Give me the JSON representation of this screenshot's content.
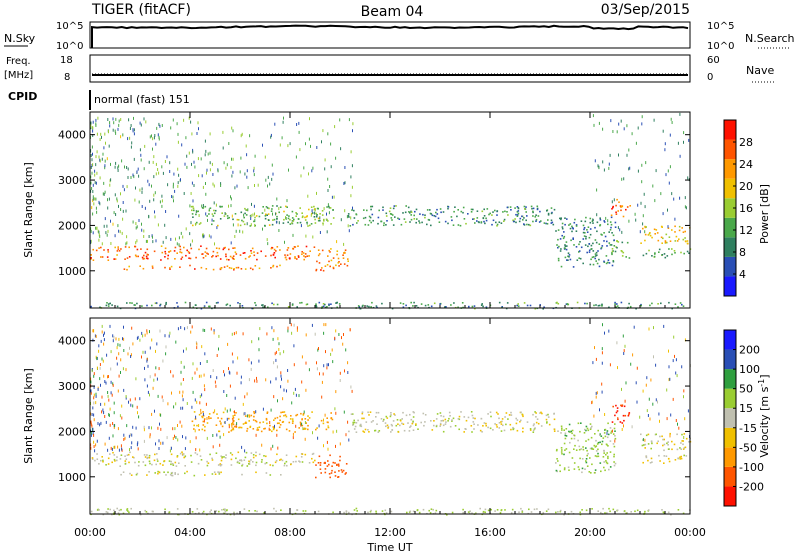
{
  "header": {
    "radar": "TIGER (fitACF)",
    "beam": "Beam 04",
    "date": "03/Sep/2015"
  },
  "nsky_panel": {
    "left_label": "N.Sky",
    "left_ticks": [
      "10^5",
      "10^0"
    ],
    "right_ticks": [
      "10^5",
      "10^0"
    ],
    "right_label": "N.Search"
  },
  "freq_panel": {
    "left_label_1": "Freq.",
    "left_label_2": "[MHz]",
    "left_ticks": [
      "18",
      "8"
    ],
    "right_ticks": [
      "60",
      "0"
    ],
    "right_label": "Nave"
  },
  "cpid": {
    "label": "CPID",
    "value": "normal (fast) 151"
  },
  "colors": {
    "power": [
      "#1a1aff",
      "#2a4fb5",
      "#2f7f5f",
      "#4aa84a",
      "#9acd32",
      "#f0c000",
      "#ff9900",
      "#ff5500",
      "#ff1100"
    ],
    "velocity": [
      "#ff1100",
      "#ff5500",
      "#ff9900",
      "#f0c000",
      "#c0c0b0",
      "#9acd32",
      "#2f9f3f",
      "#2a4fb5",
      "#1a1aff"
    ]
  },
  "chart_data": [
    {
      "type": "heatmap",
      "ylabel": "Slant Range [km]",
      "ylim": [
        180,
        4500
      ],
      "xlim_hours": [
        0,
        24
      ],
      "y_ticks": [
        1000,
        2000,
        3000,
        4000
      ],
      "colorbar": {
        "label": "Power [dB]",
        "range": [
          0,
          32
        ],
        "tick_values": [
          4,
          8,
          12,
          16,
          20,
          24,
          28
        ]
      },
      "echo_regions": [
        {
          "t0": 0.0,
          "t1": 9.0,
          "r0": 1250,
          "r1": 1560,
          "value": 26
        },
        {
          "t0": 1.2,
          "t1": 7.6,
          "r0": 1040,
          "r1": 1140,
          "value": 25
        },
        {
          "t0": 9.0,
          "t1": 10.3,
          "r0": 1000,
          "r1": 1500,
          "value": 24
        },
        {
          "t0": 4.0,
          "t1": 9.8,
          "r0": 2000,
          "r1": 2450,
          "value": 14
        },
        {
          "t0": 10.3,
          "t1": 18.6,
          "r0": 2000,
          "r1": 2450,
          "value": 10
        },
        {
          "t0": 18.6,
          "t1": 21.0,
          "r0": 1100,
          "r1": 2200,
          "value": 9
        },
        {
          "t0": 20.8,
          "t1": 21.6,
          "r0": 2200,
          "r1": 2600,
          "value": 26
        },
        {
          "t0": 20.8,
          "t1": 21.6,
          "r0": 1300,
          "r1": 1700,
          "value": 14
        },
        {
          "t0": 22.0,
          "t1": 24.0,
          "r0": 1600,
          "r1": 2000,
          "value": 20
        },
        {
          "t0": 22.0,
          "t1": 24.0,
          "r0": 1300,
          "r1": 1500,
          "value": 12
        },
        {
          "t0": 0.0,
          "t1": 24.0,
          "r0": 180,
          "r1": 320,
          "value": 10
        }
      ]
    },
    {
      "type": "heatmap",
      "ylabel": "Slant Range [km]",
      "ylim": [
        180,
        4500
      ],
      "xlim_hours": [
        0,
        24
      ],
      "y_ticks": [
        1000,
        2000,
        3000,
        4000
      ],
      "xlabel": "Time UT",
      "x_tick_labels": [
        "00:00",
        "04:00",
        "08:00",
        "12:00",
        "16:00",
        "20:00",
        "00:00"
      ],
      "colorbar": {
        "label": "Velocity [m s^-1]",
        "boundaries": [
          -250,
          -200,
          -100,
          -50,
          -15,
          15,
          50,
          100,
          200,
          250
        ],
        "tick_labels": [
          "-200",
          "-100",
          "-50",
          "-15",
          "15",
          "50",
          "100",
          "200"
        ]
      },
      "echo_regions": [
        {
          "t0": 0.0,
          "t1": 9.0,
          "r0": 1250,
          "r1": 1560,
          "value": 0
        },
        {
          "t0": 1.2,
          "t1": 7.6,
          "r0": 1040,
          "r1": 1140,
          "value": 0
        },
        {
          "t0": 9.0,
          "t1": 10.3,
          "r0": 1000,
          "r1": 1500,
          "value": -150
        },
        {
          "t0": 4.0,
          "t1": 9.8,
          "r0": 2000,
          "r1": 2450,
          "value": -60
        },
        {
          "t0": 10.3,
          "t1": 18.6,
          "r0": 2000,
          "r1": 2450,
          "value": 0
        },
        {
          "t0": 18.6,
          "t1": 21.0,
          "r0": 1100,
          "r1": 2200,
          "value": 30
        },
        {
          "t0": 20.8,
          "t1": 21.6,
          "r0": 2200,
          "r1": 2600,
          "value": -220
        },
        {
          "t0": 22.0,
          "t1": 24.0,
          "r0": 1600,
          "r1": 2000,
          "value": 0
        },
        {
          "t0": 22.0,
          "t1": 24.0,
          "r0": 1300,
          "r1": 1500,
          "value": -10
        },
        {
          "t0": 0.0,
          "t1": 24.0,
          "r0": 180,
          "r1": 320,
          "value": 20
        }
      ]
    }
  ]
}
